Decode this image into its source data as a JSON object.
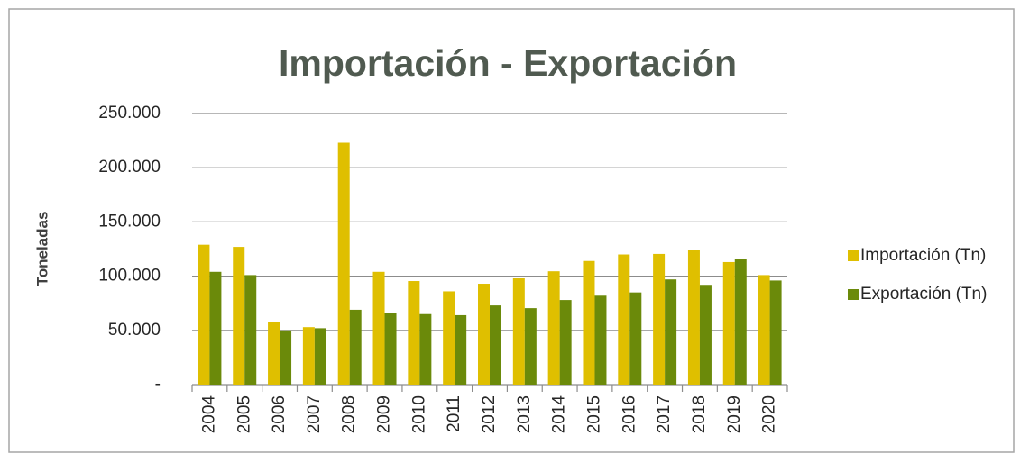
{
  "chart_data": {
    "type": "bar",
    "title": "Importación - Exportación",
    "y_label": "Toneladas",
    "categories": [
      "2004",
      "2005",
      "2006",
      "2007",
      "2008",
      "2009",
      "2010",
      "2011",
      "2012",
      "2013",
      "2014",
      "2015",
      "2016",
      "2017",
      "2018",
      "2019",
      "2020"
    ],
    "series": [
      {
        "name": "Importación (Tn)",
        "color": "#dfbf00",
        "values": [
          129000,
          127000,
          58000,
          53000,
          223000,
          104000,
          95500,
          86000,
          93000,
          98000,
          104500,
          114000,
          120000,
          120500,
          124500,
          113000,
          101000
        ]
      },
      {
        "name": "Exportación (Tn)",
        "color": "#6b8a0a",
        "values": [
          104000,
          101000,
          50000,
          52000,
          69000,
          66000,
          65000,
          64000,
          73000,
          70500,
          78000,
          82000,
          85000,
          97000,
          92000,
          116000,
          96000
        ]
      }
    ],
    "ylim": [
      0,
      250000
    ],
    "yticks": [
      {
        "value": 0,
        "label": "-"
      },
      {
        "value": 50000,
        "label": "50.000"
      },
      {
        "value": 100000,
        "label": "100.000"
      },
      {
        "value": 150000,
        "label": "150.000"
      },
      {
        "value": 200000,
        "label": "200.000"
      },
      {
        "value": 250000,
        "label": "250.000"
      }
    ],
    "grid": true,
    "legend": "right"
  }
}
